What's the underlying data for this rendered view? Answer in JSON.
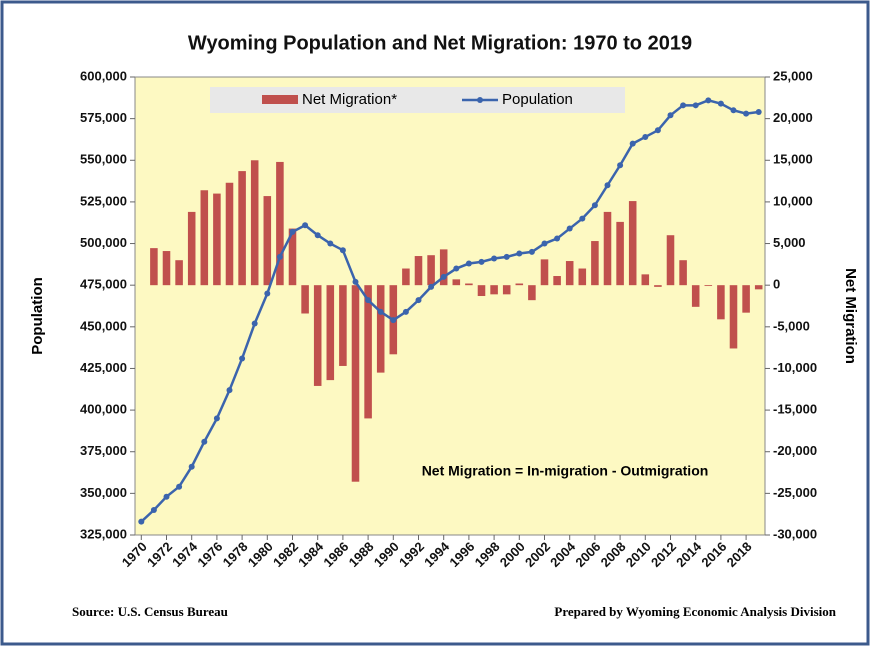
{
  "chart_data": {
    "type": "combo",
    "title": "Wyoming Population and Net Migration: 1970 to 2019",
    "y_label": "Population",
    "y2_label": "Net Migration",
    "annotation": "Net Migration = In-migration - Outmigration",
    "source": "Source: U.S. Census Bureau",
    "credit": "Prepared by Wyoming Economic Analysis Division",
    "categories": [
      "1970",
      null,
      "1972",
      null,
      "1974",
      null,
      "1976",
      null,
      "1978",
      null,
      "1980",
      null,
      "1982",
      null,
      "1984",
      null,
      "1986",
      null,
      "1988",
      null,
      "1990",
      null,
      "1992",
      null,
      "1994",
      null,
      "1996",
      null,
      "1998",
      null,
      "2000",
      null,
      "2002",
      null,
      "2004",
      null,
      "2006",
      null,
      "2008",
      null,
      "2010",
      null,
      "2012",
      null,
      "2014",
      null,
      "2016",
      null,
      "2018",
      null
    ],
    "series": [
      {
        "name": "Net Migration*",
        "type": "bar",
        "axis": "y2",
        "color": "#c0504d",
        "values": [
          null,
          4450,
          4100,
          3000,
          8800,
          11400,
          11000,
          12300,
          13700,
          15000,
          10700,
          14800,
          6800,
          -3400,
          -12100,
          -11400,
          -9700,
          -23600,
          -16000,
          -10500,
          -8300,
          2000,
          3500,
          3600,
          4300,
          700,
          200,
          -1300,
          -1100,
          -1100,
          200,
          -1800,
          3100,
          1100,
          2900,
          2000,
          5300,
          8800,
          7600,
          10100,
          1300,
          -200,
          6000,
          3000,
          -2600,
          -100,
          -4100,
          -7600,
          -3300,
          -500
        ]
      },
      {
        "name": "Population",
        "type": "line",
        "color": "#3b64ad",
        "values": [
          333000,
          340000,
          348000,
          354000,
          366000,
          381000,
          395000,
          412000,
          431000,
          452000,
          470000,
          492000,
          507000,
          511000,
          505000,
          500000,
          496000,
          477000,
          466000,
          459000,
          454000,
          459000,
          466000,
          474000,
          480000,
          485000,
          488000,
          489000,
          491000,
          492000,
          494000,
          495000,
          500000,
          503000,
          509000,
          515000,
          523000,
          535000,
          547000,
          560000,
          564000,
          568000,
          577000,
          583000,
          583000,
          586000,
          584000,
          580000,
          578000,
          579000
        ]
      }
    ],
    "ylim": [
      325000,
      600000
    ],
    "yticks": [
      {
        "value": 325000,
        "label": "325,000"
      },
      {
        "value": 350000,
        "label": "350,000"
      },
      {
        "value": 375000,
        "label": "375,000"
      },
      {
        "value": 400000,
        "label": "400,000"
      },
      {
        "value": 425000,
        "label": "425,000"
      },
      {
        "value": 450000,
        "label": "450,000"
      },
      {
        "value": 475000,
        "label": "475,000"
      },
      {
        "value": 500000,
        "label": "500,000"
      },
      {
        "value": 525000,
        "label": "525,000"
      },
      {
        "value": 550000,
        "label": "550,000"
      },
      {
        "value": 575000,
        "label": "575,000"
      },
      {
        "value": 600000,
        "label": "600,000"
      }
    ],
    "y2lim": [
      -30000,
      25000
    ],
    "y2ticks": [
      {
        "value": -30000,
        "label": "-30,000"
      },
      {
        "value": -25000,
        "label": "-25,000"
      },
      {
        "value": -20000,
        "label": "-20,000"
      },
      {
        "value": -15000,
        "label": "-15,000"
      },
      {
        "value": -10000,
        "label": "-10,000"
      },
      {
        "value": -5000,
        "label": "-5,000"
      },
      0,
      {
        "value": 5000,
        "label": "5,000"
      },
      {
        "value": 10000,
        "label": "10,000"
      },
      {
        "value": 15000,
        "label": "15,000"
      },
      {
        "value": 20000,
        "label": "20,000"
      },
      {
        "value": 25000,
        "label": "25,000"
      }
    ],
    "grid": false,
    "legend": "top"
  }
}
